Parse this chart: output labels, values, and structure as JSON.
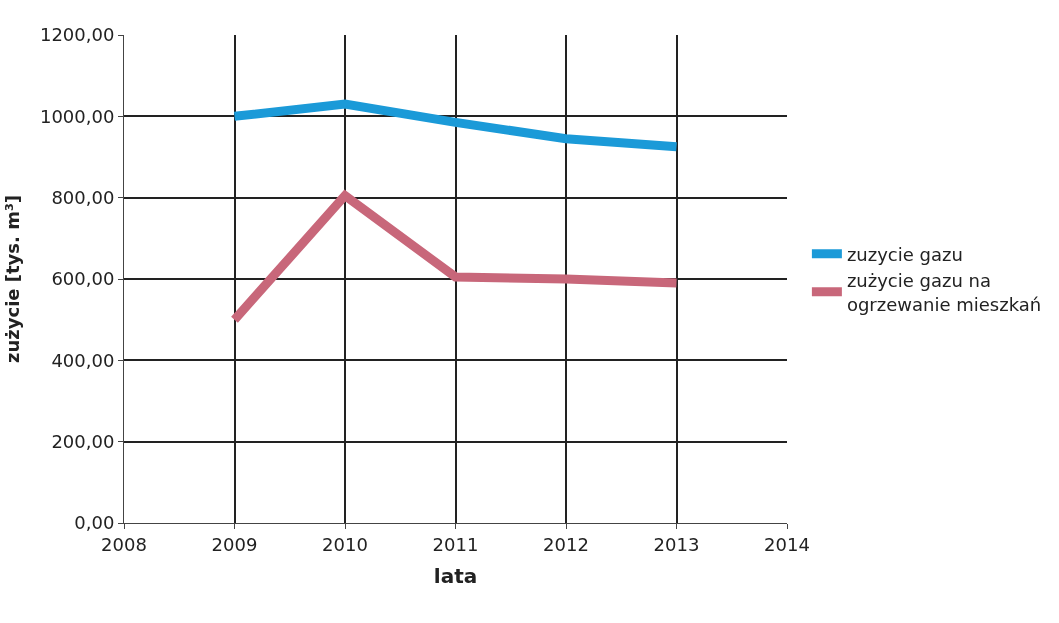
{
  "chart_data": {
    "type": "line",
    "xlabel": "lata",
    "ylabel": "zużycie [tys. m³]",
    "x": [
      2009,
      2010,
      2011,
      2012,
      2013
    ],
    "series": [
      {
        "name": "zuzycie gazu",
        "color": "#1b9ad8",
        "values": [
          1000,
          1030,
          985,
          945,
          925
        ]
      },
      {
        "name": "zużycie gazu na ogrzewanie mieszkań",
        "color": "#c8677a",
        "values": [
          500,
          805,
          605,
          600,
          590
        ]
      }
    ],
    "xlim": [
      2008,
      2014
    ],
    "xticks": [
      2008,
      2009,
      2010,
      2011,
      2012,
      2013,
      2014
    ],
    "ylim": [
      0,
      1200
    ],
    "yticks": [
      {
        "value": 0,
        "label": "0,00"
      },
      {
        "value": 200,
        "label": "200,00"
      },
      {
        "value": 400,
        "label": "400,00"
      },
      {
        "value": 600,
        "label": "600,00"
      },
      {
        "value": 800,
        "label": "800,00"
      },
      {
        "value": 1000,
        "label": "1000,00"
      },
      {
        "value": 1200,
        "label": "1200,00"
      }
    ],
    "grid": true,
    "legend": "right",
    "marker": "none",
    "line_style": "solid"
  }
}
